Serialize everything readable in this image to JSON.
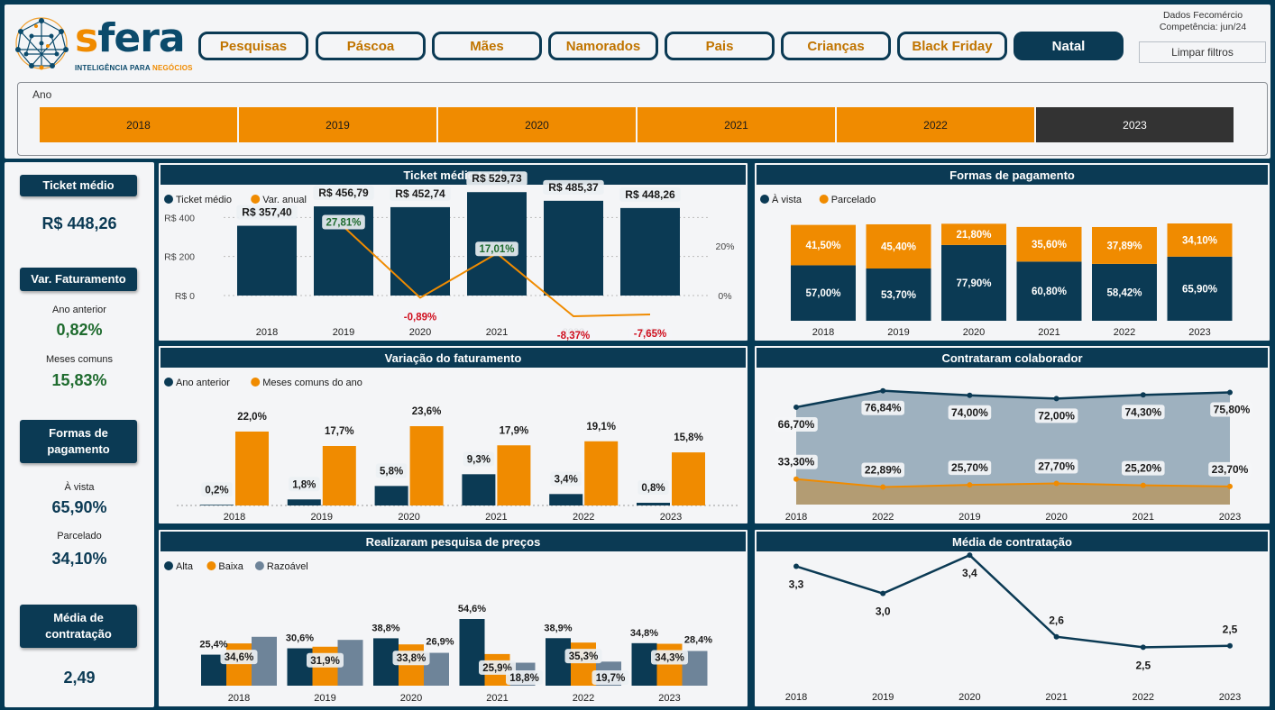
{
  "header": {
    "logo_main": "sfera",
    "logo_sub_a": "INTELIGÊNCIA PARA ",
    "logo_sub_b": "NEGÓCIOS",
    "nav": [
      "Pesquisas",
      "Páscoa",
      "Mães",
      "Namorados",
      "Pais",
      "Crianças",
      "Black Friday",
      "Natal"
    ],
    "active_nav": "Natal",
    "source_line1": "Dados Fecomércio",
    "source_line2": "Competência: jun/24",
    "clear_filters": "Limpar filtros"
  },
  "year_filter": {
    "label": "Ano",
    "years": [
      "2018",
      "2019",
      "2020",
      "2021",
      "2022",
      "2023"
    ],
    "selected": "2023"
  },
  "kpis": {
    "ticket_title": "Ticket médio",
    "ticket_value": "R$ 448,26",
    "fat_title": "Var. Faturamento",
    "fat_prev_label": "Ano anterior",
    "fat_prev_value": "0,82%",
    "fat_common_label": "Meses comuns",
    "fat_common_value": "15,83%",
    "pay_title": "Formas de pagamento",
    "pay_cash_label": "À vista",
    "pay_cash_value": "65,90%",
    "pay_inst_label": "Parcelado",
    "pay_inst_value": "34,10%",
    "hire_title": "Média de contratação",
    "hire_value": "2,49"
  },
  "colors": {
    "navy": "#0b3a54",
    "orange": "#f08b00",
    "gray": "#6e8499",
    "green": "#1e6b2e",
    "red": "#d0101f"
  },
  "chart_data": [
    {
      "id": "ticket",
      "type": "bar",
      "title": "Ticket médio total",
      "legend": [
        "Ticket médio",
        "Var. anual"
      ],
      "categories": [
        "2018",
        "2019",
        "2020",
        "2021",
        "2022",
        "2023"
      ],
      "series": [
        {
          "name": "Ticket médio",
          "values": [
            357.4,
            456.79,
            452.74,
            529.73,
            485.37,
            448.26
          ]
        },
        {
          "name": "Var. anual",
          "values": [
            null,
            27.81,
            -0.89,
            17.01,
            -8.37,
            -7.65
          ]
        }
      ],
      "bar_labels": [
        "R$ 357,40",
        "R$ 456,79",
        "R$ 452,74",
        "R$ 529,73",
        "R$ 485,37",
        "R$ 448,26"
      ],
      "line_labels": [
        "",
        "27,81%",
        "-0,89%",
        "17,01%",
        "-8,37%",
        "-7,65%"
      ],
      "y_ticks": [
        "R$ 400",
        "R$ 200",
        "R$ 0"
      ],
      "y_tick_values": [
        400,
        200,
        0
      ],
      "y2_ticks": [
        "20%",
        "0%"
      ],
      "y2_tick_values": [
        20,
        0
      ]
    },
    {
      "id": "payment",
      "type": "bar",
      "stacked": true,
      "title": "Formas de pagamento",
      "legend": [
        "À vista",
        "Parcelado"
      ],
      "categories": [
        "2018",
        "2019",
        "2020",
        "2021",
        "2022",
        "2023"
      ],
      "series": [
        {
          "name": "À vista",
          "values": [
            57.0,
            53.7,
            77.9,
            60.8,
            58.42,
            65.9
          ]
        },
        {
          "name": "Parcelado",
          "values": [
            41.5,
            45.4,
            21.8,
            35.6,
            37.89,
            34.1
          ]
        }
      ],
      "labels_cash": [
        "57,00%",
        "53,70%",
        "77,90%",
        "60,80%",
        "58,42%",
        "65,90%"
      ],
      "labels_inst": [
        "41,50%",
        "45,40%",
        "21,80%",
        "35,60%",
        "37,89%",
        "34,10%"
      ]
    },
    {
      "id": "revenue",
      "type": "bar",
      "title": "Variação do faturamento",
      "legend": [
        "Ano anterior",
        "Meses comuns do ano"
      ],
      "categories": [
        "2018",
        "2019",
        "2020",
        "2021",
        "2022",
        "2023"
      ],
      "series": [
        {
          "name": "Ano anterior",
          "values": [
            0.2,
            1.8,
            5.8,
            9.3,
            3.4,
            0.8
          ]
        },
        {
          "name": "Meses comuns do ano",
          "values": [
            22.0,
            17.7,
            23.6,
            17.9,
            19.1,
            15.8
          ]
        }
      ],
      "labels_a": [
        "0,2%",
        "1,8%",
        "5,8%",
        "9,3%",
        "3,4%",
        "0,8%"
      ],
      "labels_b": [
        "22,0%",
        "17,7%",
        "23,6%",
        "17,9%",
        "19,1%",
        "15,8%"
      ]
    },
    {
      "id": "hired",
      "type": "area",
      "title": "Contrataram colaborador",
      "categories": [
        "2018",
        "2022",
        "2019",
        "2020",
        "2021",
        "2023"
      ],
      "series": [
        {
          "values": [
            66.7,
            76.84,
            74.0,
            72.0,
            74.3,
            75.8
          ]
        },
        {
          "values": [
            33.3,
            22.89,
            25.7,
            27.7,
            25.2,
            23.7
          ]
        }
      ],
      "labels_top": [
        "66,70%",
        "76,84%",
        "74,00%",
        "72,00%",
        "74,30%",
        "75,80%"
      ],
      "labels_bottom": [
        "33,30%",
        "22,89%",
        "25,70%",
        "27,70%",
        "25,20%",
        "23,70%"
      ]
    },
    {
      "id": "research",
      "type": "bar",
      "title": "Realizaram pesquisa de preços",
      "legend": [
        "Alta",
        "Baixa",
        "Razoável"
      ],
      "categories": [
        "2018",
        "2019",
        "2020",
        "2021",
        "2022",
        "2023"
      ],
      "series": [
        {
          "name": "Alta",
          "values": [
            25.4,
            30.6,
            38.8,
            54.6,
            38.9,
            34.8
          ]
        },
        {
          "name": "Baixa",
          "values": [
            34.6,
            31.9,
            33.8,
            25.9,
            35.3,
            34.3
          ]
        },
        {
          "name": "Razoável",
          "values": [
            40.0,
            37.5,
            26.9,
            18.8,
            19.7,
            28.4
          ]
        }
      ],
      "labels_alta": [
        "25,4%",
        "30,6%",
        "38,8%",
        "54,6%",
        "38,9%",
        "34,8%"
      ],
      "labels_baixa": [
        "34,6%",
        "31,9%",
        "33,8%",
        "25,9%",
        "35,3%",
        "34,3%"
      ],
      "labels_raz": [
        "",
        "",
        "26,9%",
        "18,8%",
        "19,7%",
        "28,4%"
      ]
    },
    {
      "id": "hiring_avg",
      "type": "line",
      "title": "Média de contratação",
      "categories": [
        "2018",
        "2019",
        "2020",
        "2021",
        "2022",
        "2023"
      ],
      "series": [
        {
          "values": [
            3.3,
            3.0,
            3.4,
            2.6,
            2.5,
            2.5
          ]
        }
      ],
      "labels": [
        "3,3",
        "3,0",
        "3,4",
        "2,6",
        "2,5",
        "2,5"
      ]
    }
  ]
}
